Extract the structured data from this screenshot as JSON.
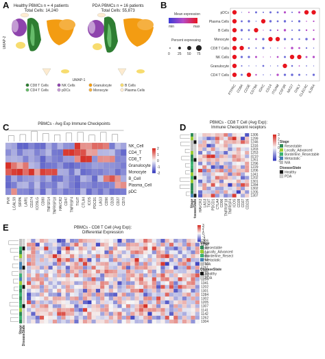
{
  "panelA": {
    "label": "A",
    "left_title1": "Healthy PBMCs n = 4 patients",
    "left_title2": "Total Cells: 14,240",
    "right_title1": "PDA PBMCs n = 16 patients",
    "right_title2": "Total Cells: 55,873",
    "ylabel": "UMAP-2",
    "xlabel": "UMAP-1",
    "legend": [
      {
        "name": "CD8 T Cells",
        "color": "#2e7d32"
      },
      {
        "name": "CD4 T Cells",
        "color": "#66bb6a"
      },
      {
        "name": "NK Cells",
        "color": "#8e44ad"
      },
      {
        "name": "pDCs",
        "color": "#c39bd3"
      },
      {
        "name": "Granulocyte",
        "color": "#f39c12"
      },
      {
        "name": "Monocyte",
        "color": "#f5b041"
      },
      {
        "name": "B Cells",
        "color": "#f7dc6f"
      },
      {
        "name": "Plasma Cells",
        "color": "#fdebd0"
      }
    ]
  },
  "panelB": {
    "label": "B",
    "legend_title": "Mean expression",
    "legend_min": "min",
    "legend_max": "max",
    "size_title": "Percent expressing",
    "size_ticks": [
      "0",
      "25",
      "50",
      "75"
    ],
    "rows": [
      "pDCs",
      "Plasma Cells",
      "B Cells",
      "Monocyte",
      "CD8 T Cells",
      "NK Cells",
      "Granulocyte",
      "CD4 T Cells"
    ],
    "cols": [
      "PTPRC",
      "CD8A",
      "CD3E",
      "CD79A",
      "IGKC",
      "CD14",
      "ITGAM",
      "CSF3R",
      "NKG7",
      "GNLY",
      "CLEC4C",
      "IL3RA"
    ]
  },
  "panelC": {
    "label": "C",
    "title": "PBMCs - Avg Exp Immune Checkpoints",
    "rows": [
      "NK_Cell",
      "CD4_T",
      "CD8_T",
      "Granulocyte",
      "Monocyte",
      "B_Cell",
      "Plasma_Cell",
      "pDC"
    ],
    "cols": [
      "PVR",
      "LGALS9",
      "SIRPA",
      "LAIR1",
      "CD274",
      "ICOSLG",
      "CD80",
      "TNFSF14",
      "TNFRSF18",
      "HAVCR2",
      "CD47",
      "TNFRSF4",
      "TIGIT",
      "CTLA4",
      "ICOS",
      "PDCD1",
      "LAG3",
      "CD96",
      "CD28",
      "CD27",
      "CD70"
    ],
    "scale_ticks": [
      "2",
      "1",
      "0",
      "-1",
      "-2"
    ]
  },
  "panelD": {
    "label": "D",
    "title1": "PBMCs - CD8 T Cell (Avg Exp):",
    "title2": "Immune Checkpoint receptors",
    "rows": [
      "1306",
      "1299",
      "1246",
      "1316",
      "1203",
      "1253",
      "3210",
      "1261",
      "1296",
      "1229",
      "1206",
      "1341",
      "1202",
      "1301",
      "1284",
      "1302",
      "1205",
      "1307"
    ],
    "cols": [
      "HAVCR2",
      "LAG3",
      "TIGIT",
      "PDCD1",
      "CTLA4",
      "CD96",
      "TNFRSF18",
      "TNFRSF4",
      "ICOS",
      "CD28",
      "CD27",
      "CD226"
    ],
    "annot_labels": [
      "Stage",
      "DiseaseState"
    ],
    "stage_title": "Stage",
    "stage_items": [
      {
        "name": "Resectable",
        "color": "#2e8b57"
      },
      {
        "name": "Locally_Advanced",
        "color": "#9acd32"
      },
      {
        "name": "Borderline_Resectable",
        "color": "#3cb371"
      },
      {
        "name": "Metastatic",
        "color": "#4682b4"
      },
      {
        "name": "N/A",
        "color": "#bdbdbd"
      }
    ],
    "disease_title": "DiseaseState",
    "disease_items": [
      {
        "name": "Healthy",
        "color": "#111111"
      },
      {
        "name": "PDA",
        "color": "#cfcfcf"
      }
    ],
    "scale_ticks": [
      "3",
      "2",
      "1",
      "0",
      "-1",
      "-2",
      "-3"
    ]
  },
  "panelE": {
    "label": "E",
    "title1": "PBMCs - CD8 T Cell (Avg Exp):",
    "title2": "Differential Expression",
    "rows": [
      "1306",
      "1299",
      "1246",
      "1316",
      "1203",
      "1253",
      "3210",
      "1261",
      "1296",
      "1229",
      "1206",
      "1341",
      "1202",
      "1301",
      "1284",
      "1302",
      "1205",
      "1307",
      "1141",
      "1142",
      "1262",
      "1304"
    ],
    "annot_labels": [
      "Stage",
      "DiseaseState"
    ],
    "stage_title": "Stage",
    "stage_items": [
      {
        "name": "Resectable",
        "color": "#2e8b57"
      },
      {
        "name": "Locally_Advanced",
        "color": "#9acd32"
      },
      {
        "name": "Borderline_Resectable",
        "color": "#3cb371"
      },
      {
        "name": "Metastatic",
        "color": "#4682b4"
      },
      {
        "name": "N/A",
        "color": "#bdbdbd"
      }
    ],
    "disease_title": "DiseaseState",
    "disease_items": [
      {
        "name": "Healthy",
        "color": "#111111"
      },
      {
        "name": "PDA",
        "color": "#cfcfcf"
      }
    ],
    "scale_ticks": [
      "3",
      "2",
      "1",
      "0",
      "-1",
      "-2",
      "-3"
    ],
    "col_count": 40
  },
  "colors": {
    "heat_high": "#d73027",
    "heat_mid": "#f7f7f7",
    "heat_low": "#3a3fbf",
    "dot_high": "#e8141e",
    "dot_low": "#3b3bd6"
  }
}
